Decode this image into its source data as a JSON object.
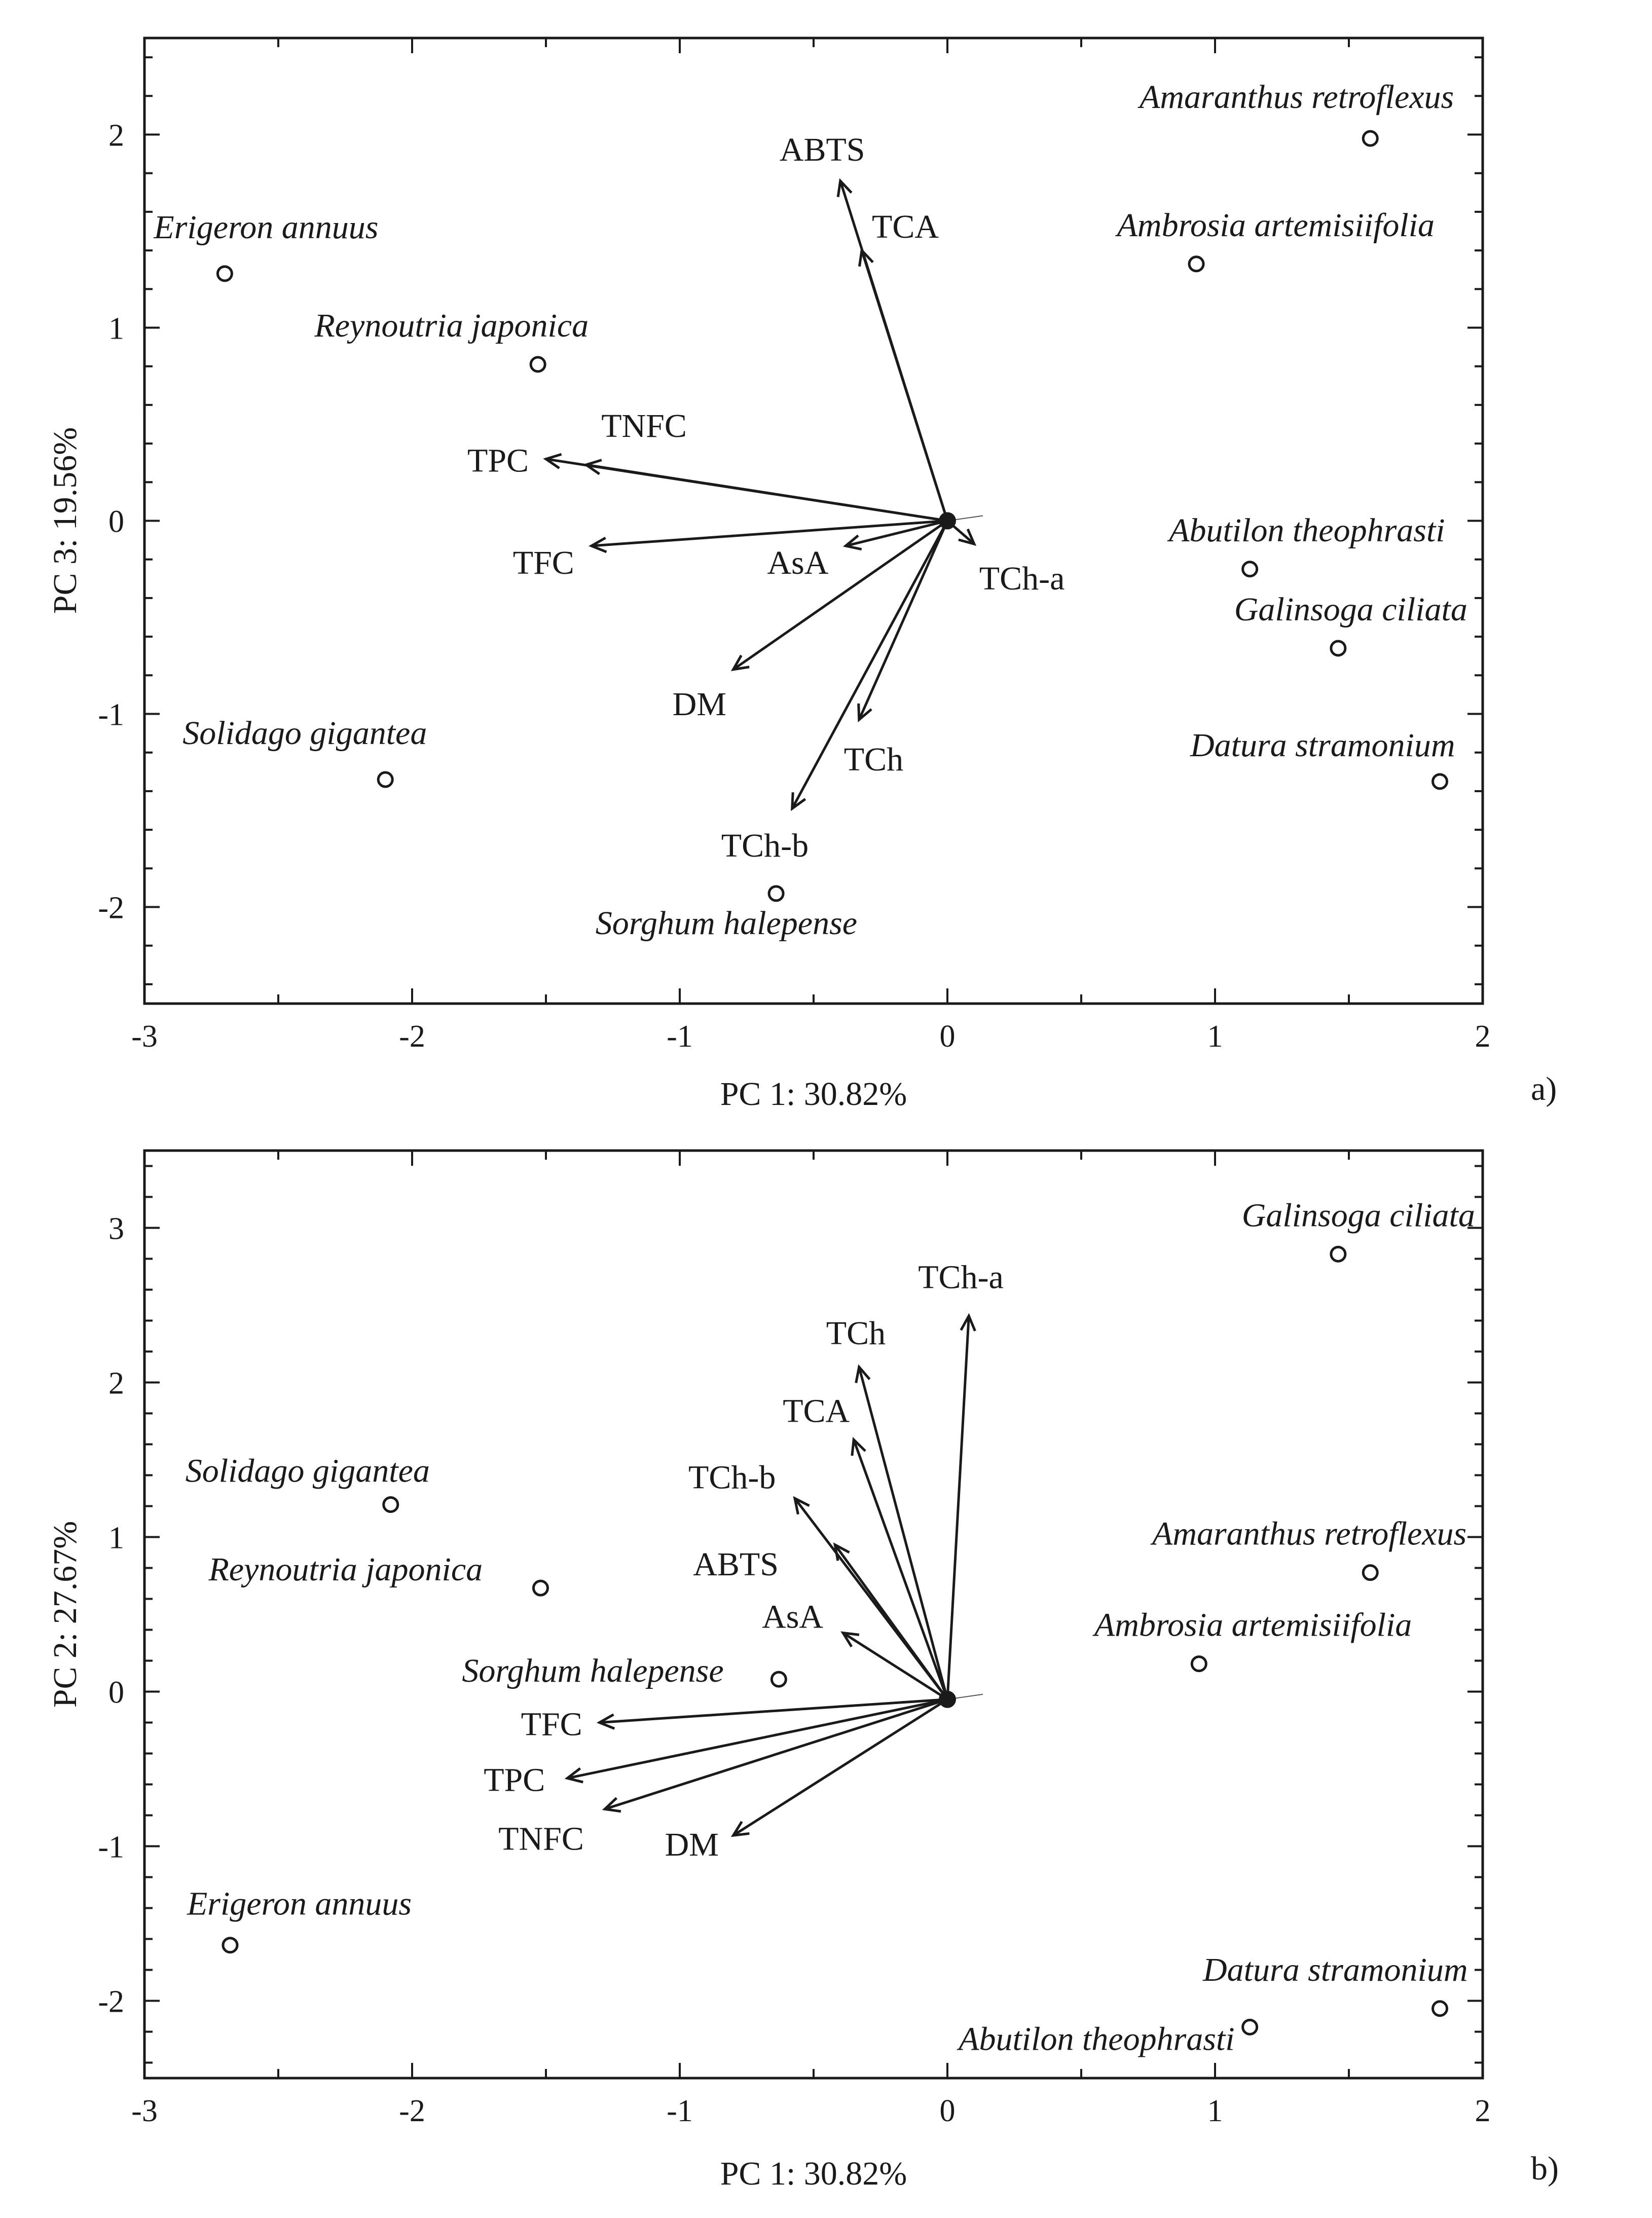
{
  "chart_data": [
    {
      "type": "scatter",
      "subtype": "pca-biplot",
      "panel_label": "a)",
      "xlabel": "PC 1: 30.82%",
      "ylabel": "PC 3: 19.56%",
      "xlim": [
        -3,
        2
      ],
      "ylim": [
        -2.5,
        2.5
      ],
      "xticks": [
        "-3",
        "-2",
        "-1",
        "0",
        "1",
        "2"
      ],
      "yticks": [
        "-2",
        "-1",
        "0",
        "1",
        "2"
      ],
      "xtick_values": [
        -3,
        -2,
        -1,
        0,
        1,
        2
      ],
      "ytick_values": [
        -2,
        -1,
        0,
        1,
        2
      ],
      "origin": [
        0,
        0
      ],
      "points": [
        {
          "name": "Amaranthus retroflexus",
          "x": 1.58,
          "y": 1.98
        },
        {
          "name": "Ambrosia artemisiifolia",
          "x": 0.93,
          "y": 1.33
        },
        {
          "name": "Erigeron annuus",
          "x": -2.7,
          "y": 1.28
        },
        {
          "name": "Reynoutria japonica",
          "x": -1.53,
          "y": 0.81
        },
        {
          "name": "Abutilon theophrasti",
          "x": 1.13,
          "y": -0.25
        },
        {
          "name": "Galinsoga ciliata",
          "x": 1.46,
          "y": -0.66
        },
        {
          "name": "Solidago gigantea",
          "x": -2.1,
          "y": -1.34
        },
        {
          "name": "Datura stramonium",
          "x": 1.84,
          "y": -1.35
        },
        {
          "name": "Sorghum halepense",
          "x": -0.64,
          "y": -1.93
        }
      ],
      "vectors": [
        {
          "name": "ABTS",
          "x": -0.4,
          "y": 1.76
        },
        {
          "name": "TCA",
          "x": -0.32,
          "y": 1.4
        },
        {
          "name": "TNFC",
          "x": -1.35,
          "y": 0.29
        },
        {
          "name": "TPC",
          "x": -1.5,
          "y": 0.32
        },
        {
          "name": "TFC",
          "x": -1.33,
          "y": -0.13
        },
        {
          "name": "AsA",
          "x": -0.38,
          "y": -0.13
        },
        {
          "name": "TCh-a",
          "x": 0.1,
          "y": -0.12
        },
        {
          "name": "DM",
          "x": -0.8,
          "y": -0.77
        },
        {
          "name": "TCh",
          "x": -0.33,
          "y": -1.03
        },
        {
          "name": "TCh-b",
          "x": -0.58,
          "y": -1.49
        }
      ]
    },
    {
      "type": "scatter",
      "subtype": "pca-biplot",
      "panel_label": "b)",
      "xlabel": "PC 1: 30.82%",
      "ylabel": "PC 2: 27.67%",
      "xlim": [
        -3,
        2
      ],
      "ylim": [
        -2.5,
        3.5
      ],
      "xticks": [
        "-3",
        "-2",
        "-1",
        "0",
        "1",
        "2"
      ],
      "yticks": [
        "-2",
        "-1",
        "0",
        "1",
        "2",
        "3"
      ],
      "xtick_values": [
        -3,
        -2,
        -1,
        0,
        1,
        2
      ],
      "ytick_values": [
        -2,
        -1,
        0,
        1,
        2,
        3
      ],
      "origin": [
        0,
        -0.05
      ],
      "points": [
        {
          "name": "Galinsoga ciliata",
          "x": 1.46,
          "y": 2.83
        },
        {
          "name": "Solidago gigantea",
          "x": -2.08,
          "y": 1.21
        },
        {
          "name": "Reynoutria japonica",
          "x": -1.52,
          "y": 0.67
        },
        {
          "name": "Amaranthus retroflexus",
          "x": 1.58,
          "y": 0.77
        },
        {
          "name": "Ambrosia artemisiifolia",
          "x": 0.94,
          "y": 0.18
        },
        {
          "name": "Sorghum halepense",
          "x": -0.63,
          "y": 0.08
        },
        {
          "name": "Erigeron annuus",
          "x": -2.68,
          "y": -1.64
        },
        {
          "name": "Datura stramonium",
          "x": 1.84,
          "y": -2.05
        },
        {
          "name": "Abutilon theophrasti",
          "x": 1.13,
          "y": -2.17
        }
      ],
      "vectors": [
        {
          "name": "TCh-a",
          "x": 0.08,
          "y": 2.43
        },
        {
          "name": "TCh",
          "x": -0.33,
          "y": 2.1
        },
        {
          "name": "TCA",
          "x": -0.35,
          "y": 1.63
        },
        {
          "name": "TCh-b",
          "x": -0.57,
          "y": 1.25
        },
        {
          "name": "ABTS",
          "x": -0.42,
          "y": 0.95
        },
        {
          "name": "AsA",
          "x": -0.39,
          "y": 0.38
        },
        {
          "name": "TFC",
          "x": -1.3,
          "y": -0.2
        },
        {
          "name": "TPC",
          "x": -1.42,
          "y": -0.56
        },
        {
          "name": "TNFC",
          "x": -1.28,
          "y": -0.76
        },
        {
          "name": "DM",
          "x": -0.8,
          "y": -0.93
        }
      ]
    }
  ]
}
